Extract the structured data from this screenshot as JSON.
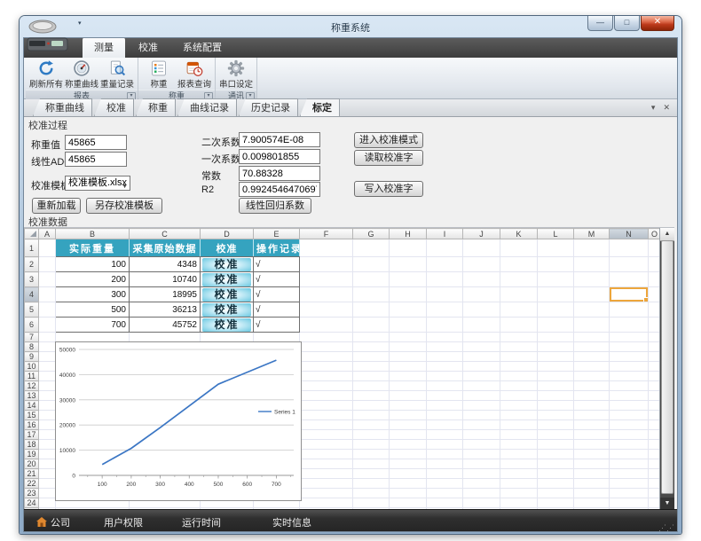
{
  "window": {
    "title": "称重系统",
    "controls": {
      "minimize": "—",
      "maximize": "□",
      "close": "✕"
    }
  },
  "ribbon": {
    "tabs": [
      {
        "label": "测量",
        "active": true
      },
      {
        "label": "校准",
        "active": false
      },
      {
        "label": "系统配置",
        "active": false
      }
    ],
    "groups": [
      {
        "label": "报表",
        "buttons": [
          {
            "label": "刷新所有",
            "icon": "refresh-icon"
          },
          {
            "label": "称重曲线",
            "icon": "gauge-icon"
          },
          {
            "label": "重量记录",
            "icon": "record-search-icon"
          }
        ]
      },
      {
        "label": "称重",
        "buttons": [
          {
            "label": "称重",
            "icon": "task-list-icon"
          },
          {
            "label": "报表查询",
            "icon": "report-calendar-icon"
          }
        ]
      },
      {
        "label": "通讯",
        "buttons": [
          {
            "label": "串口设定",
            "icon": "gear-icon"
          }
        ]
      }
    ]
  },
  "doc_tabs": {
    "items": [
      {
        "label": "称重曲线",
        "active": false
      },
      {
        "label": "校准",
        "active": false
      },
      {
        "label": "称重",
        "active": false
      },
      {
        "label": "曲线记录",
        "active": false
      },
      {
        "label": "历史记录",
        "active": false
      },
      {
        "label": "标定",
        "active": true
      }
    ],
    "dropdown_icon": "▾",
    "close_icon": "✕"
  },
  "calibration_process": {
    "section_label": "校准过程",
    "weight_label": "称重值",
    "weight_value": "45865",
    "linear_adc_label": "线性ADC",
    "linear_adc_value": "45865",
    "template_label": "校准模板",
    "template_value": "校准模板.xlsx",
    "coef2_label": "二次系数",
    "coef2_value": "7.900574E-08",
    "coef1_label": "一次系数",
    "coef1_value": "0.009801855",
    "const_label": "常数",
    "const_value": "70.88328",
    "r2_label": "R2",
    "r2_value": "0.99245464706971",
    "enter_calib_btn": "进入校准模式",
    "read_calib_btn": "读取校准字",
    "write_calib_btn": "写入校准字",
    "reload_btn": "重新加载",
    "save_template_btn": "另存校准模板",
    "linear_regression_btn": "线性回归系数"
  },
  "calibration_grid": {
    "section_label": "校准数据",
    "columns": [
      "A",
      "B",
      "C",
      "D",
      "E",
      "F",
      "G",
      "H",
      "I",
      "J",
      "K",
      "L",
      "M",
      "N",
      "O"
    ],
    "row_count": 25,
    "header_cells": {
      "B": "实际重量",
      "C": "采集原始数据",
      "D": "校准",
      "E": "操作记录"
    },
    "rows": [
      {
        "row": 2,
        "actual_weight": "100",
        "raw_data": "4348",
        "button": "校准",
        "record": "√"
      },
      {
        "row": 3,
        "actual_weight": "200",
        "raw_data": "10740",
        "button": "校准",
        "record": "√"
      },
      {
        "row": 4,
        "actual_weight": "300",
        "raw_data": "18995",
        "button": "校准",
        "record": "√"
      },
      {
        "row": 5,
        "actual_weight": "500",
        "raw_data": "36213",
        "button": "校准",
        "record": "√"
      },
      {
        "row": 6,
        "actual_weight": "700",
        "raw_data": "45752",
        "button": "校准",
        "record": "√"
      }
    ],
    "selected_cell": {
      "column": "N",
      "row": 4
    },
    "teal_header_color": "#35a3bf",
    "selection_color": "#eda63c"
  },
  "chart_data": {
    "type": "line",
    "title": "",
    "x": [
      100,
      200,
      300,
      500,
      700
    ],
    "series": [
      {
        "name": "Series 1",
        "values": [
          4348,
          10740,
          18995,
          36213,
          45752
        ]
      }
    ],
    "x_ticks": [
      100,
      200,
      300,
      400,
      500,
      600,
      700
    ],
    "y_ticks": [
      0,
      10000,
      20000,
      30000,
      40000,
      50000
    ],
    "xlim": [
      20,
      760
    ],
    "ylim": [
      0,
      50000
    ],
    "grid": true,
    "legend_position": "right",
    "line_color": "#3b76c4"
  },
  "status_bar": {
    "items": [
      {
        "label": "公司",
        "icon": "home-icon"
      },
      {
        "label": "用户权限"
      },
      {
        "label": "运行时间"
      },
      {
        "label": "实时信息"
      }
    ]
  }
}
